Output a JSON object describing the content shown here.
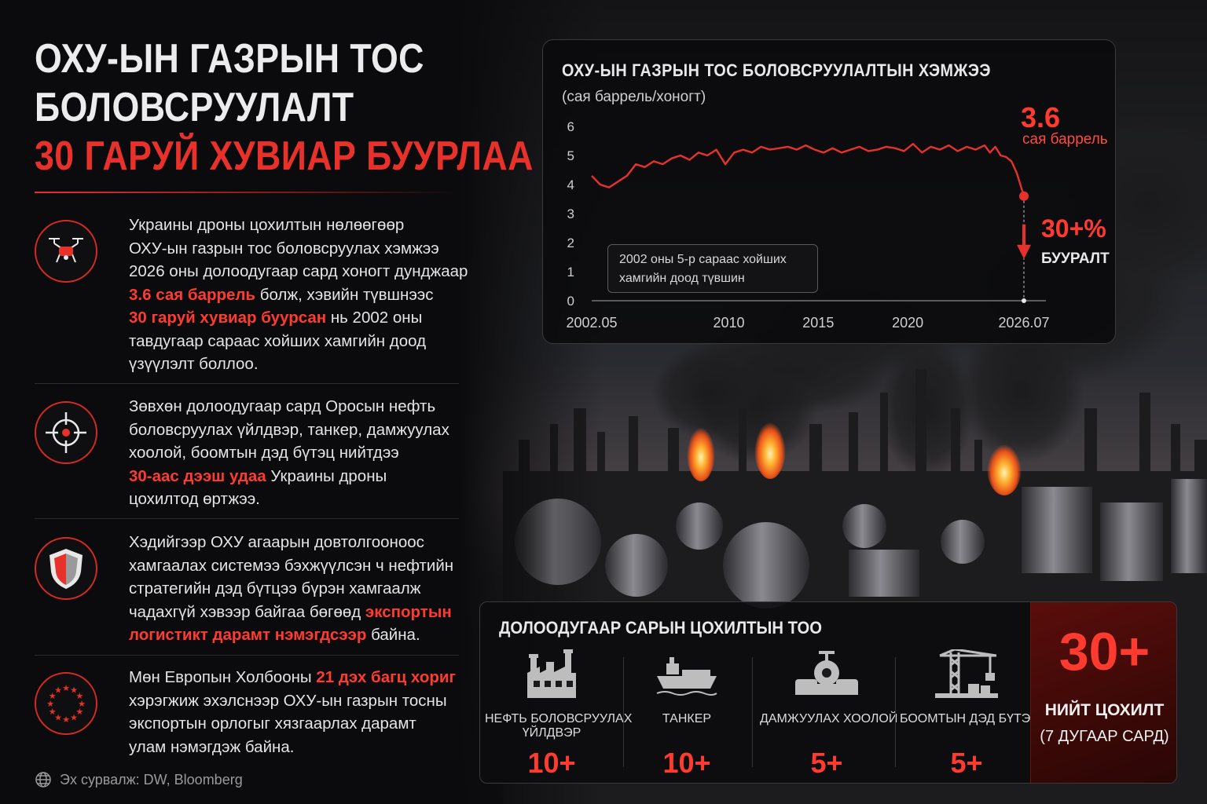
{
  "headline": {
    "line1": "ОХУ-ЫН ГАЗРЫН ТОС",
    "line2": "БОЛОВСРУУЛАЛТ",
    "line3": "30 ГАРУЙ ХУВИАР БУУРЛАА"
  },
  "items": [
    {
      "icon": "drone-icon",
      "lines": [
        {
          "t": "Украины дроны цохилтын нөлөөгөөр"
        },
        {
          "t": "ОХУ-ын газрын тос боловсруулах хэмжээ"
        },
        {
          "t": "2026 оны долоодугаар сард хоногт дунджаар"
        },
        {
          "t": "3.6 сая баррель",
          "r": true,
          "tail": " болж, хэвийн түвшнээс"
        },
        {
          "t": "30 гаруй хувиар буурсан",
          "r": true,
          "tail": " нь 2002 оны"
        },
        {
          "t": "тавдугаар сараас хойших хамгийн доод"
        },
        {
          "t": "үзүүлэлт боллоо."
        }
      ]
    },
    {
      "icon": "crosshair-icon",
      "lines": [
        {
          "t": "Зөвхөн долоодугаар сард Оросын нефть"
        },
        {
          "t": "боловсруулах үйлдвэр, танкер, дамжуулах"
        },
        {
          "t": "хоолой, боомтын дэд бүтэц нийтдээ"
        },
        {
          "t": "30-аас дээш удаа",
          "r": true,
          "tail": " Украины дроны"
        },
        {
          "t": "цохилтод өртжээ."
        }
      ]
    },
    {
      "icon": "shield-icon",
      "lines": [
        {
          "t": "Хэдийгээр ОХУ агаарын довтолгооноос"
        },
        {
          "t": "хамгаалах системээ бэхжүүлсэн ч нефтийн"
        },
        {
          "t": "стратегийн дэд бүтцээ бүрэн хамгаалж"
        },
        {
          "t": "чадахгүй хэвээр байгаа бөгөөд ",
          "tailR": "экспортын"
        },
        {
          "t": "логистикт дарамт нэмэгдсээр",
          "r": true,
          "tail": " байна."
        }
      ]
    },
    {
      "icon": "eu-stars-icon",
      "lines": [
        {
          "t": "Мөн Европын Холбооны ",
          "tailR": "21 дэх багц хориг"
        },
        {
          "t": "хэрэгжиж эхэлснээр ОХУ-ын газрын тосны"
        },
        {
          "t": "экспортын орлогыг хязгаарлах дарамт"
        },
        {
          "t": "улам нэмэгдэж байна."
        }
      ]
    }
  ],
  "source": "Эх сурвалж: DW, Bloomberg",
  "chart_data": {
    "type": "line",
    "title": "ОХУ-ЫН ГАЗРЫН ТОС БОЛОВСРУУЛАЛТЫН ХЭМЖЭЭ",
    "subtitle": "(сая баррель/хоногт)",
    "ylim": [
      0,
      6
    ],
    "yticks": [
      0,
      1,
      2,
      3,
      4,
      5,
      6
    ],
    "xlim": [
      2002.33,
      2026.5
    ],
    "xtick_labels": [
      {
        "x": 2002.33,
        "label": "2002.05"
      },
      {
        "x": 2010,
        "label": "2010"
      },
      {
        "x": 2015,
        "label": "2015"
      },
      {
        "x": 2020,
        "label": "2020"
      },
      {
        "x": 2026.5,
        "label": "2026.07"
      }
    ],
    "series": [
      {
        "color": "#e8312a",
        "x": [
          2002.33,
          2002.8,
          2003.3,
          2003.8,
          2004.3,
          2004.8,
          2005.3,
          2005.8,
          2006.3,
          2006.8,
          2007.3,
          2007.8,
          2008.3,
          2008.8,
          2009.3,
          2009.8,
          2010.3,
          2010.8,
          2011.3,
          2011.8,
          2012.3,
          2012.8,
          2013.3,
          2013.8,
          2014.3,
          2014.8,
          2015.3,
          2015.8,
          2016.3,
          2016.8,
          2017.3,
          2017.8,
          2018.3,
          2018.8,
          2019.3,
          2019.8,
          2020.3,
          2020.8,
          2021.3,
          2021.8,
          2022.3,
          2022.8,
          2023.3,
          2023.8,
          2024.3,
          2024.6,
          2024.9,
          2025.2,
          2025.5,
          2025.8,
          2026.1,
          2026.5
        ],
        "values": [
          4.3,
          4.0,
          3.9,
          4.1,
          4.3,
          4.7,
          4.6,
          4.8,
          4.7,
          4.9,
          5.0,
          4.85,
          5.1,
          5.0,
          5.2,
          4.7,
          5.1,
          5.2,
          5.1,
          5.3,
          5.2,
          5.25,
          5.3,
          5.2,
          5.35,
          5.2,
          5.1,
          5.25,
          5.1,
          5.2,
          5.3,
          5.15,
          5.2,
          5.3,
          5.25,
          5.15,
          5.4,
          5.1,
          5.3,
          5.2,
          5.35,
          5.15,
          5.3,
          5.2,
          5.35,
          5.1,
          5.3,
          5.0,
          4.95,
          4.8,
          4.4,
          3.6
        ]
      }
    ],
    "last_value": "3.6",
    "last_unit": "сая баррель",
    "drop_pct": "30+%",
    "drop_label": "БУУРАЛТ",
    "annotation_lines": [
      "2002 оны 5-р сараас хойших",
      "хамгийн доод түвшин"
    ]
  },
  "stats": {
    "title": "ДОЛООДУГААР САРЫН ЦОХИЛТЫН ТОО",
    "columns": [
      {
        "icon": "refinery-icon",
        "label1": "НЕФТЬ БОЛОВСРУУЛАХ",
        "label2": "ҮЙЛДВЭР",
        "value": "10+"
      },
      {
        "icon": "tanker-icon",
        "label1": "ТАНКЕР",
        "label2": "",
        "value": "10+"
      },
      {
        "icon": "pipeline-icon",
        "label1": "ДАМЖУУЛАХ ХООЛОЙ",
        "label2": "",
        "value": "5+"
      },
      {
        "icon": "port-crane-icon",
        "label1": "БООМТЫН ДЭД БҮТЭЦ",
        "label2": "",
        "value": "5+"
      }
    ],
    "total_value": "30+",
    "total_label1": "НИЙТ ЦОХИЛТ",
    "total_label2": "(7 ДУГААР САРД)"
  },
  "colors": {
    "accent": "#e8312a",
    "background": "#0b0b0d"
  }
}
